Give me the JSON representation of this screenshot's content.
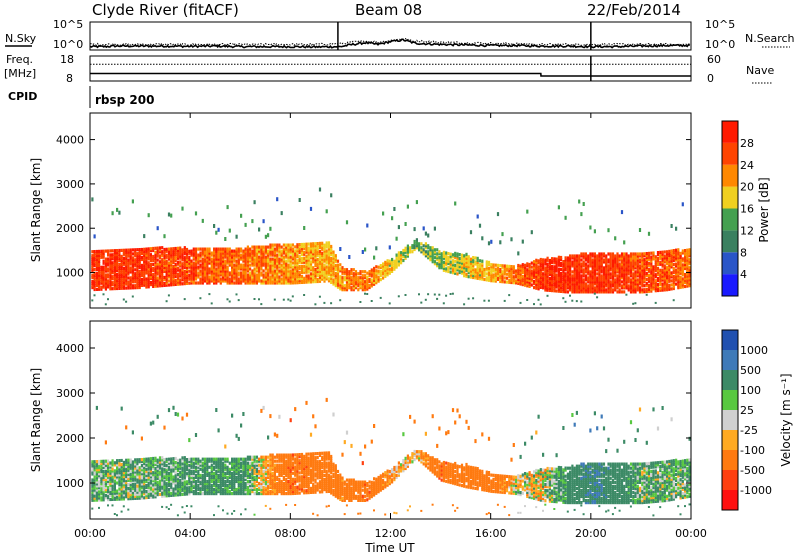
{
  "header": {
    "station": "Clyde River (fitACF)",
    "beam": "Beam 08",
    "date": "22/Feb/2014"
  },
  "params": {
    "nsky_label": "N.Sky",
    "nsearch_label": "N.Search",
    "noise_ticks": [
      "10^5",
      "10^0"
    ],
    "freq_label": "Freq.",
    "freq_unit": "[MHz]",
    "freq_ticks": [
      "18",
      "8"
    ],
    "nave_label": "Nave",
    "nave_ticks": [
      "60",
      "0"
    ],
    "cpid_label": "CPID",
    "cpid_value": "rbsp 200"
  },
  "time_axis": {
    "label": "Time UT",
    "ticks": [
      "00:00",
      "04:00",
      "08:00",
      "12:00",
      "16:00",
      "20:00",
      "00:00"
    ]
  },
  "range_axis": {
    "label": "Slant Range [km]",
    "ticks": [
      "1000",
      "2000",
      "3000",
      "4000"
    ],
    "range": [
      200,
      4600
    ]
  },
  "power_scale": {
    "label": "Power [dB]",
    "ticks": [
      "4",
      "8",
      "12",
      "16",
      "20",
      "24",
      "28"
    ],
    "colors": [
      "#1a1aff",
      "#2a55c8",
      "#3a8060",
      "#44a050",
      "#f0d020",
      "#ff8800",
      "#ff4400",
      "#ff1a00"
    ]
  },
  "velocity_scale": {
    "label": "Velocity [m s⁻¹]",
    "ticks": [
      "1000",
      "500",
      "100",
      "25",
      "-25",
      "-100",
      "-500",
      "-1000"
    ],
    "colors": [
      "#2050b0",
      "#3f7ab8",
      "#3c8a66",
      "#58c840",
      "#cfcfcf",
      "#ffaa22",
      "#ff7a10",
      "#ff4010",
      "#ff1010"
    ]
  },
  "chart_data": [
    {
      "type": "line",
      "title": "N.Sky / N.Search",
      "x_hours": [
        0,
        0.5,
        1,
        2,
        3,
        4,
        5,
        6,
        7,
        8,
        9,
        10,
        10.5,
        11,
        11.5,
        12,
        12.5,
        13,
        14,
        15,
        16,
        17,
        18,
        19,
        20,
        21,
        22,
        23,
        24
      ],
      "series": [
        {
          "name": "N.Sky",
          "values_log10": [
            0.6,
            0.6,
            0.7,
            0.7,
            0.7,
            0.65,
            0.7,
            0.6,
            0.6,
            0.6,
            0.55,
            0.6,
            1.0,
            1.3,
            1.0,
            1.5,
            1.8,
            1.2,
            1.0,
            0.9,
            0.8,
            0.8,
            0.7,
            0.7,
            0.6,
            0.6,
            0.7,
            0.8,
            0.8
          ]
        },
        {
          "name": "N.Search",
          "values_log10": [
            1.0,
            1.0,
            1.0,
            1.0,
            1.0,
            1.0,
            1.0,
            1.0,
            1.0,
            1.0,
            1.0,
            1.1,
            1.4,
            1.6,
            1.4,
            1.7,
            2.0,
            1.6,
            1.4,
            1.3,
            1.2,
            1.1,
            1.0,
            1.0,
            1.0,
            1.0,
            1.0,
            1.0,
            1.0
          ]
        }
      ],
      "ylim_log10": [
        0,
        5
      ]
    },
    {
      "type": "line",
      "title": "Freq / Nave",
      "x_hours": [
        0,
        18,
        18.01,
        24
      ],
      "series": [
        {
          "name": "Freq",
          "values": [
            11,
            11,
            10,
            10
          ]
        },
        {
          "name": "Nave",
          "values": [
            40,
            40,
            40,
            40
          ]
        }
      ],
      "ylim_freq": [
        8,
        18
      ],
      "ylim_nave": [
        0,
        60
      ]
    },
    {
      "type": "heatmap",
      "title": "Power",
      "xlabel": "Time UT",
      "ylabel": "Slant Range [km]",
      "xlim_hours": [
        0,
        24
      ],
      "ylim_km": [
        200,
        4600
      ],
      "main_band": {
        "x_hours": [
          0,
          2,
          4,
          6,
          8,
          9.5,
          10,
          11,
          12,
          13,
          14,
          15,
          16,
          17,
          18,
          19,
          20,
          21,
          22,
          23,
          24
        ],
        "center_km": [
          1100,
          1150,
          1200,
          1200,
          1250,
          1300,
          900,
          850,
          1200,
          1700,
          1300,
          1200,
          1050,
          1000,
          1000,
          1000,
          1050,
          1050,
          1050,
          1100,
          1150
        ],
        "width_km": [
          900,
          900,
          800,
          800,
          900,
          900,
          500,
          400,
          300,
          200,
          400,
          500,
          400,
          400,
          700,
          800,
          900,
          900,
          900,
          900,
          800
        ],
        "power_db": [
          28,
          28,
          26,
          24,
          22,
          20,
          22,
          24,
          18,
          14,
          16,
          18,
          20,
          24,
          28,
          28,
          28,
          28,
          26,
          26,
          24
        ]
      }
    },
    {
      "type": "heatmap",
      "title": "Velocity",
      "xlabel": "Time UT",
      "ylabel": "Slant Range [km]",
      "xlim_hours": [
        0,
        24
      ],
      "ylim_km": [
        200,
        4600
      ],
      "main_band": {
        "x_hours": [
          0,
          2,
          4,
          6,
          8,
          9.5,
          10,
          11,
          12,
          13,
          14,
          15,
          16,
          17,
          18,
          19,
          20,
          21,
          22,
          23,
          24
        ],
        "center_km": [
          1100,
          1150,
          1200,
          1200,
          1250,
          1300,
          900,
          850,
          1200,
          1700,
          1300,
          1200,
          1050,
          1000,
          1000,
          1000,
          1050,
          1050,
          1050,
          1100,
          1150
        ],
        "width_km": [
          900,
          900,
          800,
          800,
          900,
          900,
          500,
          400,
          300,
          200,
          400,
          500,
          400,
          400,
          700,
          800,
          900,
          900,
          900,
          900,
          800
        ],
        "velocity_ms": [
          100,
          100,
          150,
          200,
          -400,
          -300,
          -200,
          -400,
          -100,
          -50,
          -400,
          -300,
          -350,
          -20,
          0,
          200,
          500,
          300,
          100,
          100,
          100
        ]
      }
    }
  ]
}
